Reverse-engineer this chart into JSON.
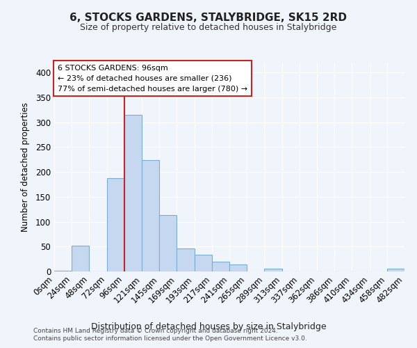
{
  "title": "6, STOCKS GARDENS, STALYBRIDGE, SK15 2RD",
  "subtitle": "Size of property relative to detached houses in Stalybridge",
  "xlabel": "Distribution of detached houses by size in Stalybridge",
  "ylabel": "Number of detached properties",
  "tick_labels": [
    "0sqm",
    "24sqm",
    "48sqm",
    "72sqm",
    "96sqm",
    "121sqm",
    "145sqm",
    "169sqm",
    "193sqm",
    "217sqm",
    "241sqm",
    "265sqm",
    "289sqm",
    "313sqm",
    "337sqm",
    "362sqm",
    "386sqm",
    "410sqm",
    "434sqm",
    "458sqm",
    "482sqm"
  ],
  "bar_values": [
    2,
    52,
    0,
    188,
    315,
    224,
    113,
    46,
    34,
    20,
    14,
    0,
    5,
    0,
    0,
    0,
    0,
    0,
    0,
    5
  ],
  "bar_color": "#c5d8f0",
  "bar_edge_color": "#7aadd4",
  "highlight_color": "#cc2222",
  "vline_bar_index": 4,
  "annotation_line1": "6 STOCKS GARDENS: 96sqm",
  "annotation_line2": "← 23% of detached houses are smaller (236)",
  "annotation_line3": "77% of semi-detached houses are larger (780) →",
  "ylim": [
    0,
    420
  ],
  "yticks": [
    0,
    50,
    100,
    150,
    200,
    250,
    300,
    350,
    400
  ],
  "footer1": "Contains HM Land Registry data © Crown copyright and database right 2024.",
  "footer2": "Contains public sector information licensed under the Open Government Licence v3.0.",
  "bg_color": "#f0f4fb"
}
